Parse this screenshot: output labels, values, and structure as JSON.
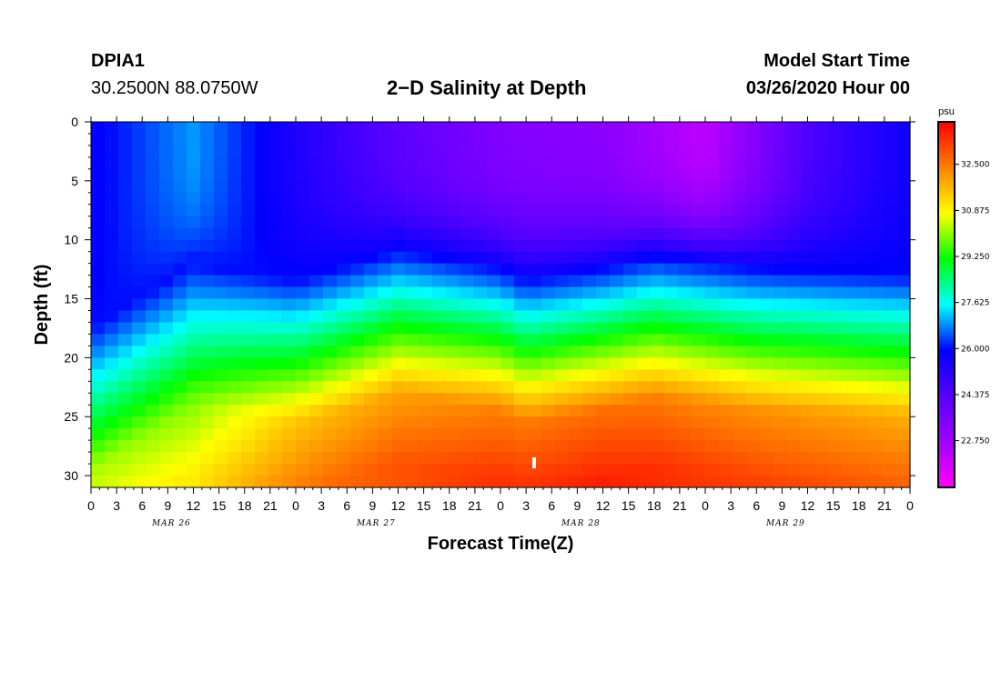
{
  "header": {
    "station": "DPIA1",
    "coords": "30.2500N 88.0750W",
    "title": "2−D Salinity at Depth",
    "start_label": "Model Start Time",
    "start_value": "03/26/2020 Hour 00"
  },
  "chart_data": {
    "type": "heatmap",
    "title": "2−D Salinity at Depth",
    "xlabel": "Forecast Time(Z)",
    "ylabel": "Depth (ft)",
    "x_hours_range": [
      0,
      96
    ],
    "x_tick_step_hours": 3,
    "x_tick_labels": [
      "0",
      "3",
      "6",
      "9",
      "12",
      "15",
      "18",
      "21",
      "0",
      "3",
      "6",
      "9",
      "12",
      "15",
      "18",
      "21",
      "0",
      "3",
      "6",
      "9",
      "12",
      "15",
      "18",
      "21",
      "0",
      "3",
      "6",
      "9",
      "12",
      "15",
      "18",
      "21",
      "0"
    ],
    "day_labels": [
      {
        "text": "MAR 26",
        "hour": 9
      },
      {
        "text": "MAR 27",
        "hour": 33
      },
      {
        "text": "MAR 28",
        "hour": 57
      },
      {
        "text": "MAR 29",
        "hour": 81
      }
    ],
    "ylim": [
      0,
      31
    ],
    "y_ticks": [
      0,
      5,
      10,
      15,
      20,
      25,
      30
    ],
    "colorbar": {
      "unit": "psu",
      "range": [
        21.1,
        34.0
      ],
      "labels": [
        "32.500",
        "30.875",
        "29.250",
        "27.625",
        "26.000",
        "24.375",
        "22.750"
      ],
      "label_values": [
        32.5,
        30.875,
        29.25,
        27.625,
        26.0,
        24.375,
        22.75
      ]
    },
    "surface_layer_salinity_psu": [
      {
        "hour": 0,
        "value": 25.8
      },
      {
        "hour": 12,
        "value": 26.9
      },
      {
        "hour": 24,
        "value": 25.4
      },
      {
        "hour": 36,
        "value": 24.2
      },
      {
        "hour": 48,
        "value": 23.4
      },
      {
        "hour": 60,
        "value": 23.2
      },
      {
        "hour": 72,
        "value": 22.2
      },
      {
        "hour": 84,
        "value": 24.5
      },
      {
        "hour": 96,
        "value": 25.7
      }
    ],
    "halocline_depth_ft": [
      {
        "hour": 0,
        "value": 21.5
      },
      {
        "hour": 12,
        "value": 16.0
      },
      {
        "hour": 24,
        "value": 17.5
      },
      {
        "hour": 36,
        "value": 15.0
      },
      {
        "hour": 48,
        "value": 16.5
      },
      {
        "hour": 51,
        "value": 17.5
      },
      {
        "hour": 60,
        "value": 16.5
      },
      {
        "hour": 66,
        "value": 15.5
      },
      {
        "hour": 72,
        "value": 16.0
      },
      {
        "hour": 78,
        "value": 16.5
      },
      {
        "hour": 96,
        "value": 17.0
      }
    ],
    "bottom_salinity_psu": [
      {
        "hour": 0,
        "value": 31.2
      },
      {
        "hour": 12,
        "value": 31.0
      },
      {
        "hour": 24,
        "value": 32.5
      },
      {
        "hour": 48,
        "value": 33.4
      },
      {
        "hour": 60,
        "value": 33.6
      },
      {
        "hour": 72,
        "value": 33.3
      },
      {
        "hour": 96,
        "value": 32.8
      }
    ]
  }
}
